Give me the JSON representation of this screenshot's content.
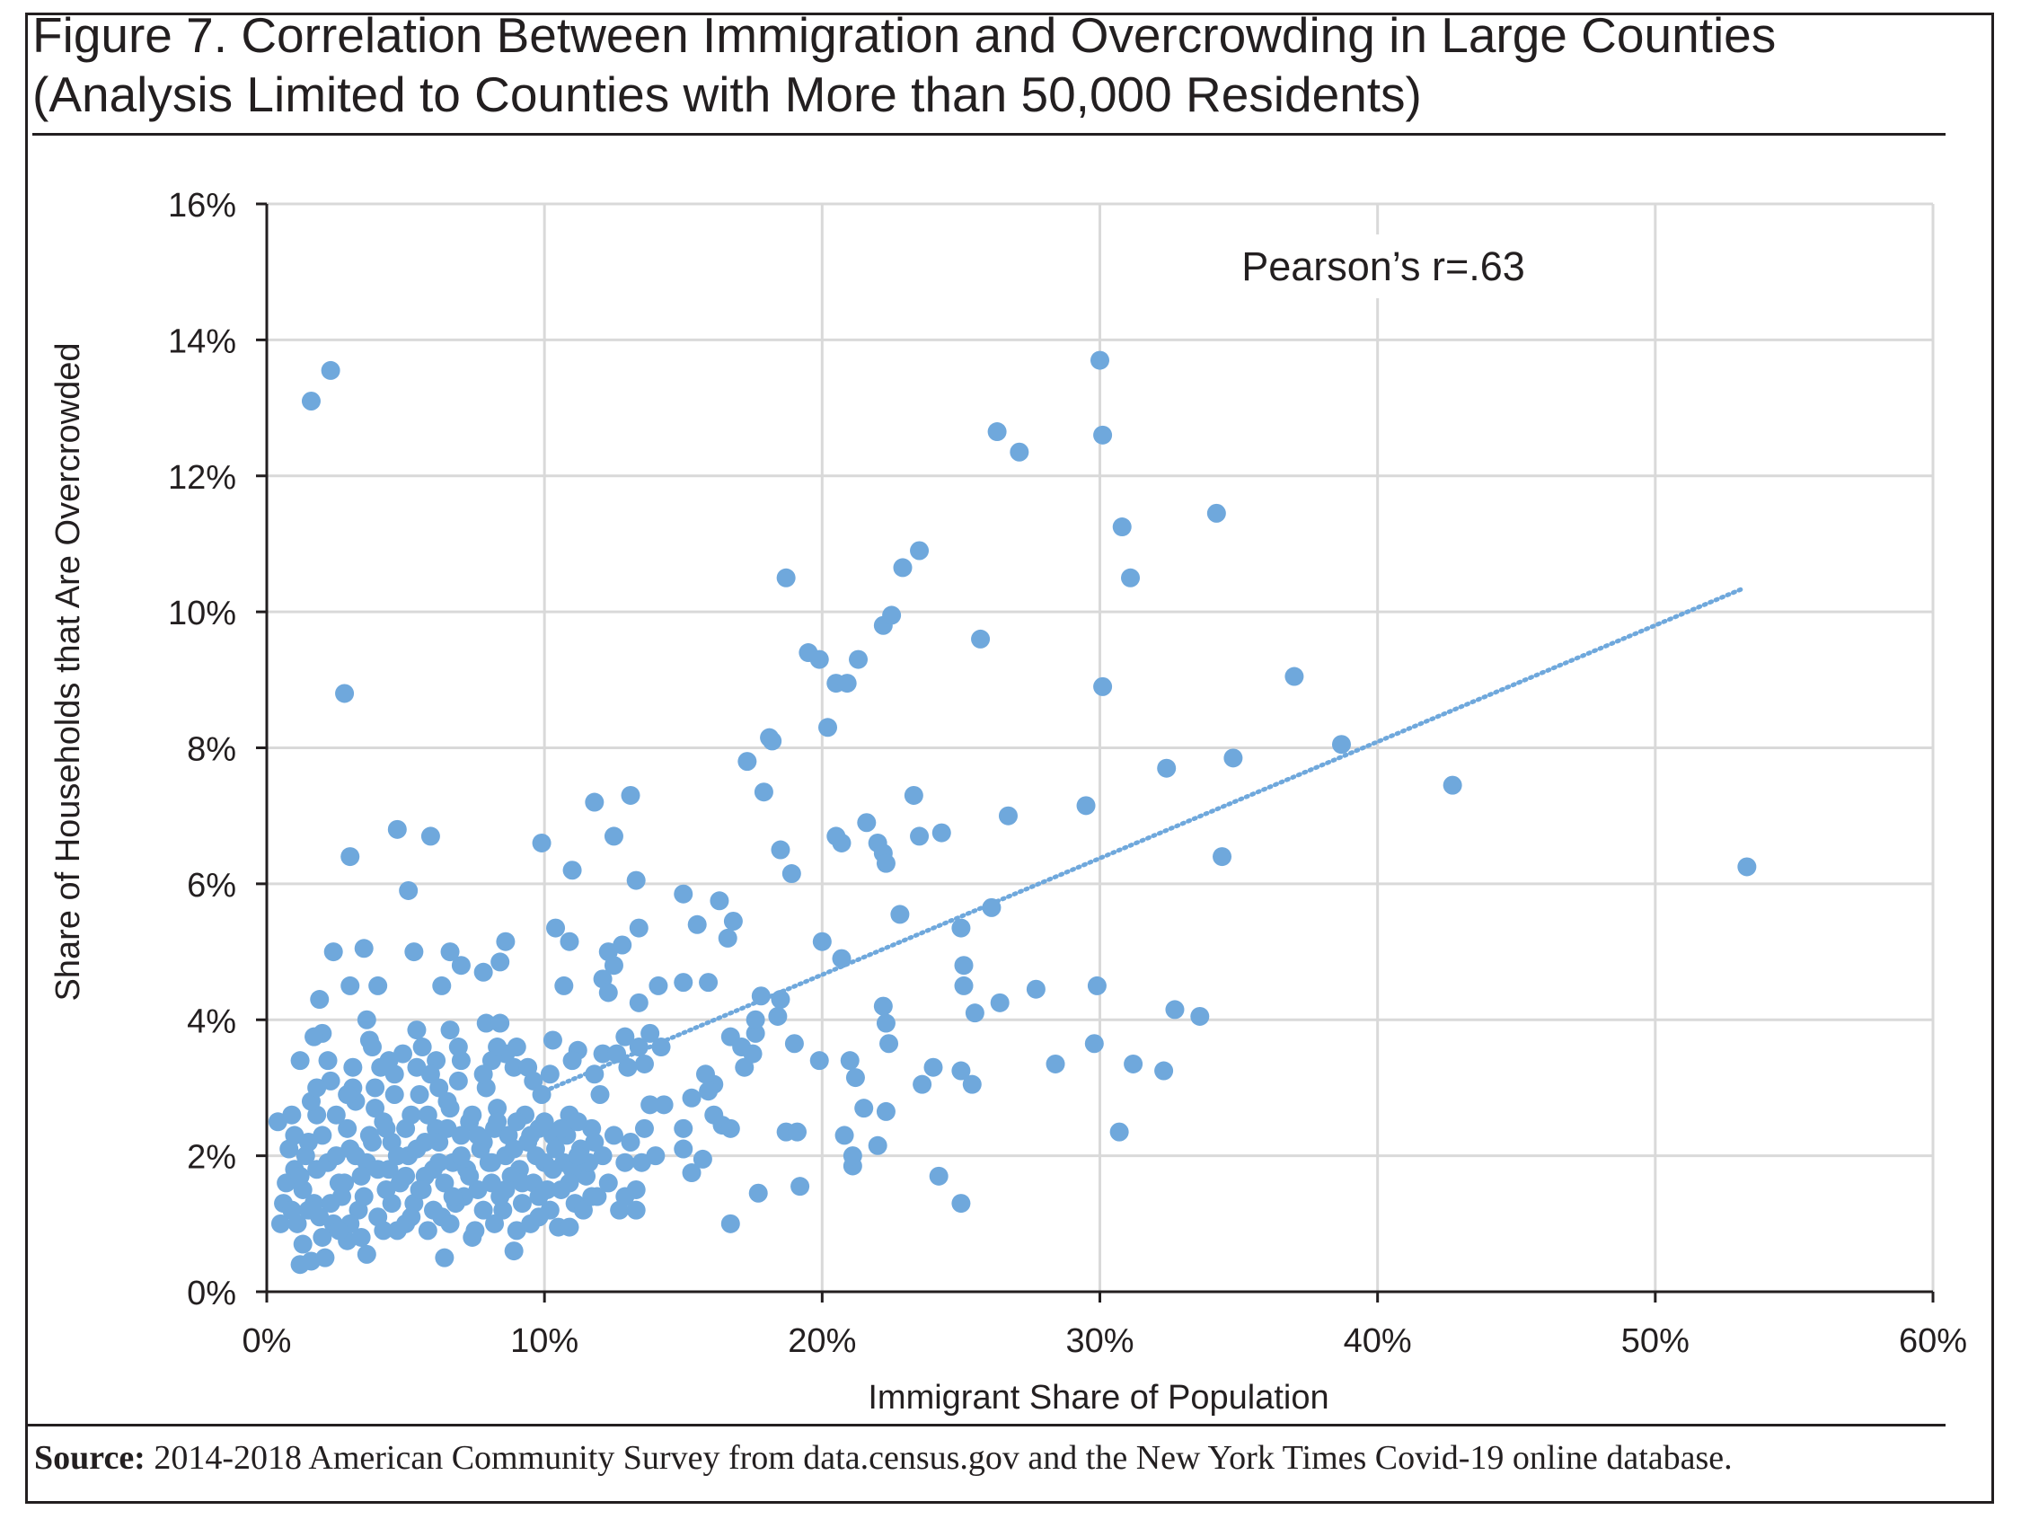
{
  "header": {
    "title_line1": "Figure 7. Correlation Between Immigration and Overcrowding in Large Counties",
    "title_line2": "(Analysis Limited to Counties with More than 50,000 Residents)"
  },
  "footer": {
    "source_label": "Source:",
    "source_text": " 2014-2018 American Community Survey from data.census.gov and the New York Times Covid-19 online database."
  },
  "chart_data": {
    "type": "scatter",
    "xlabel": "Immigrant Share of Population",
    "ylabel": "Share of Households that Are Overcrowded",
    "xlim": [
      0,
      60
    ],
    "ylim": [
      0,
      16
    ],
    "x_ticks": [
      0,
      10,
      20,
      30,
      40,
      50,
      60
    ],
    "y_ticks": [
      0,
      2,
      4,
      6,
      8,
      10,
      12,
      14,
      16
    ],
    "x_tick_labels": [
      "0%",
      "10%",
      "20%",
      "30%",
      "40%",
      "50%",
      "60%"
    ],
    "y_tick_labels": [
      "0%",
      "2%",
      "4%",
      "6%",
      "8%",
      "10%",
      "12%",
      "14%",
      "16%"
    ],
    "grid": true,
    "annotation": "Pearson’s r=.63",
    "colors": {
      "points": "#6fa8dc",
      "trendline": "#6fa8dc",
      "grid": "#d9d9d9",
      "axis": "#231f20"
    },
    "trendline": {
      "style": "dotted",
      "x": [
        10.0,
        53.2
      ],
      "y": [
        2.95,
        10.35
      ]
    },
    "points": [
      [
        2.3,
        13.55
      ],
      [
        1.6,
        13.1
      ],
      [
        2.8,
        8.8
      ],
      [
        3.0,
        6.4
      ],
      [
        4.7,
        6.8
      ],
      [
        5.9,
        6.7
      ],
      [
        5.1,
        5.9
      ],
      [
        2.4,
        5.0
      ],
      [
        3.5,
        5.05
      ],
      [
        5.3,
        5.0
      ],
      [
        6.6,
        5.0
      ],
      [
        9.9,
        6.6
      ],
      [
        11.0,
        6.2
      ],
      [
        12.5,
        6.7
      ],
      [
        13.1,
        7.3
      ],
      [
        13.3,
        6.05
      ],
      [
        10.4,
        5.35
      ],
      [
        10.9,
        5.15
      ],
      [
        8.6,
        5.15
      ],
      [
        7.0,
        4.8
      ],
      [
        7.8,
        4.7
      ],
      [
        8.4,
        4.85
      ],
      [
        6.3,
        4.5
      ],
      [
        4.0,
        4.5
      ],
      [
        3.0,
        4.5
      ],
      [
        1.9,
        4.3
      ],
      [
        12.3,
        5.0
      ],
      [
        13.4,
        5.35
      ],
      [
        12.8,
        5.1
      ],
      [
        12.5,
        4.8
      ],
      [
        12.1,
        4.6
      ],
      [
        12.3,
        4.4
      ],
      [
        13.4,
        4.25
      ],
      [
        14.1,
        4.5
      ],
      [
        15.0,
        4.55
      ],
      [
        15.9,
        4.55
      ],
      [
        15.0,
        5.85
      ],
      [
        15.5,
        5.4
      ],
      [
        16.3,
        5.75
      ],
      [
        16.8,
        5.45
      ],
      [
        16.6,
        5.2
      ],
      [
        11.8,
        7.2
      ],
      [
        10.7,
        4.5
      ],
      [
        3.6,
        4.0
      ],
      [
        6.6,
        3.85
      ],
      [
        5.4,
        3.85
      ],
      [
        7.9,
        3.95
      ],
      [
        8.4,
        3.95
      ],
      [
        2.0,
        3.8
      ],
      [
        1.7,
        3.75
      ],
      [
        3.7,
        3.7
      ],
      [
        1.2,
        3.4
      ],
      [
        2.2,
        3.4
      ],
      [
        4.4,
        3.4
      ],
      [
        6.1,
        3.4
      ],
      [
        8.1,
        3.4
      ],
      [
        9.0,
        3.6
      ],
      [
        10.3,
        3.7
      ],
      [
        11.2,
        3.55
      ],
      [
        12.1,
        3.5
      ],
      [
        12.9,
        3.75
      ],
      [
        13.4,
        3.6
      ],
      [
        13.8,
        3.8
      ],
      [
        14.2,
        3.6
      ],
      [
        13.6,
        3.35
      ],
      [
        15.8,
        3.2
      ],
      [
        16.1,
        3.05
      ],
      [
        16.7,
        3.75
      ],
      [
        17.1,
        3.6
      ],
      [
        17.5,
        3.5
      ],
      [
        17.6,
        3.8
      ],
      [
        17.8,
        4.35
      ],
      [
        18.5,
        4.3
      ],
      [
        18.4,
        4.05
      ],
      [
        17.6,
        4.0
      ],
      [
        17.2,
        3.3
      ],
      [
        19.0,
        3.65
      ],
      [
        19.9,
        3.4
      ],
      [
        17.3,
        7.8
      ],
      [
        17.9,
        7.35
      ],
      [
        18.1,
        8.15
      ],
      [
        18.2,
        8.1
      ],
      [
        18.5,
        6.5
      ],
      [
        18.9,
        6.15
      ],
      [
        18.7,
        10.5
      ],
      [
        19.5,
        9.4
      ],
      [
        19.9,
        9.3
      ],
      [
        20.5,
        8.95
      ],
      [
        20.9,
        8.95
      ],
      [
        21.3,
        9.3
      ],
      [
        20.2,
        8.3
      ],
      [
        20.5,
        6.7
      ],
      [
        20.7,
        6.6
      ],
      [
        21.6,
        6.9
      ],
      [
        22.0,
        6.6
      ],
      [
        22.2,
        6.45
      ],
      [
        22.3,
        6.3
      ],
      [
        22.8,
        5.55
      ],
      [
        22.2,
        9.8
      ],
      [
        22.5,
        9.95
      ],
      [
        22.9,
        10.65
      ],
      [
        23.5,
        10.9
      ],
      [
        23.3,
        7.3
      ],
      [
        23.5,
        6.7
      ],
      [
        24.3,
        6.75
      ],
      [
        20.0,
        5.15
      ],
      [
        20.7,
        4.9
      ],
      [
        22.2,
        4.2
      ],
      [
        22.3,
        3.95
      ],
      [
        22.4,
        3.65
      ],
      [
        21.0,
        3.4
      ],
      [
        21.2,
        3.15
      ],
      [
        24.0,
        3.3
      ],
      [
        23.6,
        3.05
      ],
      [
        25.0,
        5.35
      ],
      [
        25.1,
        4.8
      ],
      [
        25.1,
        4.5
      ],
      [
        25.5,
        4.1
      ],
      [
        26.1,
        5.65
      ],
      [
        25.7,
        9.6
      ],
      [
        26.3,
        12.65
      ],
      [
        27.1,
        12.35
      ],
      [
        26.7,
        7.0
      ],
      [
        26.4,
        4.25
      ],
      [
        27.7,
        4.45
      ],
      [
        25.0,
        3.25
      ],
      [
        25.4,
        3.05
      ],
      [
        28.4,
        3.35
      ],
      [
        29.5,
        7.15
      ],
      [
        30.0,
        13.7
      ],
      [
        30.1,
        12.6
      ],
      [
        30.8,
        11.25
      ],
      [
        31.1,
        10.5
      ],
      [
        30.1,
        8.9
      ],
      [
        29.9,
        4.5
      ],
      [
        29.8,
        3.65
      ],
      [
        31.2,
        3.35
      ],
      [
        30.7,
        2.35
      ],
      [
        32.3,
        3.25
      ],
      [
        32.4,
        7.7
      ],
      [
        32.7,
        4.15
      ],
      [
        33.6,
        4.05
      ],
      [
        34.2,
        11.45
      ],
      [
        34.4,
        6.4
      ],
      [
        34.8,
        7.85
      ],
      [
        37.0,
        9.05
      ],
      [
        38.7,
        8.05
      ],
      [
        42.7,
        7.45
      ],
      [
        53.3,
        6.25
      ],
      [
        16.4,
        2.45
      ],
      [
        16.7,
        2.4
      ],
      [
        15.3,
        2.85
      ],
      [
        15.0,
        2.4
      ],
      [
        15.0,
        2.1
      ],
      [
        15.3,
        1.75
      ],
      [
        15.7,
        1.95
      ],
      [
        16.1,
        2.6
      ],
      [
        15.9,
        2.95
      ],
      [
        13.8,
        2.75
      ],
      [
        14.3,
        2.75
      ],
      [
        17.7,
        1.45
      ],
      [
        18.7,
        2.35
      ],
      [
        19.1,
        2.35
      ],
      [
        19.2,
        1.55
      ],
      [
        16.7,
        1.0
      ],
      [
        20.8,
        2.3
      ],
      [
        21.1,
        1.85
      ],
      [
        21.1,
        2.0
      ],
      [
        21.5,
        2.7
      ],
      [
        22.0,
        2.15
      ],
      [
        22.3,
        2.65
      ],
      [
        24.2,
        1.7
      ],
      [
        25.0,
        1.3
      ],
      [
        0.4,
        2.5
      ],
      [
        0.5,
        1.0
      ],
      [
        0.6,
        1.3
      ],
      [
        0.8,
        2.1
      ],
      [
        1.0,
        1.8
      ],
      [
        1.2,
        0.4
      ],
      [
        1.6,
        0.45
      ],
      [
        2.1,
        0.5
      ],
      [
        2.9,
        0.75
      ],
      [
        3.6,
        0.55
      ],
      [
        6.4,
        0.5
      ],
      [
        8.9,
        0.6
      ],
      [
        0.9,
        1.2
      ],
      [
        1.3,
        1.5
      ],
      [
        1.5,
        2.2
      ],
      [
        1.8,
        2.6
      ],
      [
        2.0,
        0.8
      ],
      [
        2.4,
        1.0
      ],
      [
        2.6,
        1.6
      ],
      [
        2.9,
        2.4
      ],
      [
        3.1,
        3.0
      ],
      [
        3.3,
        1.2
      ],
      [
        3.6,
        1.9
      ],
      [
        3.9,
        2.7
      ],
      [
        4.1,
        3.3
      ],
      [
        4.3,
        1.5
      ],
      [
        4.5,
        2.2
      ],
      [
        4.7,
        0.9
      ],
      [
        4.9,
        3.5
      ],
      [
        5.1,
        2.0
      ],
      [
        5.3,
        1.3
      ],
      [
        5.5,
        2.9
      ],
      [
        5.7,
        1.7
      ],
      [
        5.9,
        3.2
      ],
      [
        6.1,
        2.4
      ],
      [
        6.3,
        1.1
      ],
      [
        6.5,
        2.8
      ],
      [
        6.7,
        1.9
      ],
      [
        6.9,
        3.1
      ],
      [
        7.1,
        1.4
      ],
      [
        7.3,
        2.5
      ],
      [
        7.5,
        0.9
      ],
      [
        7.7,
        2.1
      ],
      [
        7.9,
        3.0
      ],
      [
        8.1,
        1.6
      ],
      [
        8.3,
        2.7
      ],
      [
        8.5,
        1.2
      ],
      [
        8.7,
        2.3
      ],
      [
        8.9,
        3.3
      ],
      [
        9.1,
        1.8
      ],
      [
        9.3,
        2.6
      ],
      [
        9.5,
        1.0
      ],
      [
        9.7,
        2.0
      ],
      [
        9.9,
        2.9
      ],
      [
        10.1,
        1.5
      ],
      [
        10.3,
        2.3
      ],
      [
        10.5,
        0.95
      ],
      [
        10.7,
        1.9
      ],
      [
        10.9,
        2.6
      ],
      [
        11.1,
        1.3
      ],
      [
        11.3,
        2.1
      ],
      [
        11.5,
        1.7
      ],
      [
        11.7,
        2.4
      ],
      [
        11.9,
        1.4
      ],
      [
        12.1,
        2.0
      ],
      [
        12.3,
        1.6
      ],
      [
        12.5,
        2.3
      ],
      [
        12.7,
        1.2
      ],
      [
        12.9,
        1.9
      ],
      [
        13.1,
        2.2
      ],
      [
        13.3,
        1.5
      ],
      [
        13.5,
        1.9
      ],
      [
        1.1,
        1.0
      ],
      [
        1.4,
        2.0
      ],
      [
        1.7,
        1.3
      ],
      [
        2.2,
        1.9
      ],
      [
        2.5,
        2.6
      ],
      [
        2.7,
        1.4
      ],
      [
        3.0,
        2.1
      ],
      [
        3.2,
        2.8
      ],
      [
        3.4,
        1.7
      ],
      [
        3.7,
        2.3
      ],
      [
        4.0,
        1.1
      ],
      [
        4.2,
        2.5
      ],
      [
        4.4,
        1.8
      ],
      [
        4.6,
        2.9
      ],
      [
        4.8,
        1.6
      ],
      [
        5.0,
        2.4
      ],
      [
        5.2,
        1.1
      ],
      [
        5.4,
        2.1
      ],
      [
        5.6,
        1.5
      ],
      [
        5.8,
        2.6
      ],
      [
        6.0,
        1.8
      ],
      [
        6.2,
        2.2
      ],
      [
        6.4,
        1.6
      ],
      [
        6.6,
        2.7
      ],
      [
        6.8,
        1.3
      ],
      [
        7.0,
        2.3
      ],
      [
        7.2,
        1.8
      ],
      [
        7.4,
        2.6
      ],
      [
        7.6,
        1.5
      ],
      [
        7.8,
        2.2
      ],
      [
        8.0,
        1.9
      ],
      [
        8.2,
        2.4
      ],
      [
        8.4,
        1.4
      ],
      [
        8.6,
        2.0
      ],
      [
        8.8,
        1.7
      ],
      [
        9.0,
        2.5
      ],
      [
        9.2,
        1.3
      ],
      [
        9.4,
        2.2
      ],
      [
        9.6,
        1.6
      ],
      [
        9.8,
        2.4
      ],
      [
        10.0,
        1.9
      ],
      [
        10.2,
        1.2
      ],
      [
        10.4,
        2.1
      ],
      [
        10.6,
        1.5
      ],
      [
        10.8,
        2.3
      ],
      [
        11.0,
        1.8
      ],
      [
        11.2,
        2.5
      ],
      [
        11.4,
        1.2
      ],
      [
        11.6,
        1.9
      ],
      [
        11.8,
        2.2
      ],
      [
        0.7,
        1.6
      ],
      [
        1.0,
        2.3
      ],
      [
        1.2,
        1.7
      ],
      [
        1.5,
        1.2
      ],
      [
        1.8,
        1.8
      ],
      [
        2.0,
        2.3
      ],
      [
        2.3,
        1.3
      ],
      [
        2.5,
        2.0
      ],
      [
        2.8,
        1.6
      ],
      [
        3.0,
        1.0
      ],
      [
        3.2,
        2.0
      ],
      [
        3.5,
        1.4
      ],
      [
        3.8,
        2.2
      ],
      [
        4.0,
        1.8
      ],
      [
        4.3,
        2.4
      ],
      [
        4.5,
        1.3
      ],
      [
        4.7,
        2.0
      ],
      [
        5.0,
        1.7
      ],
      [
        5.2,
        2.6
      ],
      [
        5.5,
        1.5
      ],
      [
        5.7,
        2.2
      ],
      [
        6.0,
        1.2
      ],
      [
        6.2,
        1.9
      ],
      [
        6.5,
        2.4
      ],
      [
        6.7,
        1.4
      ],
      [
        7.0,
        2.0
      ],
      [
        7.3,
        1.7
      ],
      [
        7.6,
        2.3
      ],
      [
        7.8,
        1.2
      ],
      [
        8.1,
        1.9
      ],
      [
        8.3,
        2.5
      ],
      [
        8.6,
        1.5
      ],
      [
        8.9,
        2.1
      ],
      [
        9.2,
        1.6
      ],
      [
        9.5,
        2.3
      ],
      [
        9.8,
        1.4
      ],
      [
        10.0,
        2.5
      ],
      [
        10.3,
        1.8
      ],
      [
        10.6,
        2.4
      ],
      [
        10.9,
        1.6
      ],
      [
        11.2,
        2.0
      ],
      [
        1.3,
        0.7
      ],
      [
        1.9,
        1.1
      ],
      [
        2.6,
        0.9
      ],
      [
        3.4,
        0.8
      ],
      [
        4.2,
        0.9
      ],
      [
        5.0,
        1.0
      ],
      [
        5.8,
        0.9
      ],
      [
        6.6,
        1.0
      ],
      [
        7.4,
        0.8
      ],
      [
        8.2,
        1.0
      ],
      [
        9.0,
        0.9
      ],
      [
        9.8,
        1.1
      ],
      [
        1.6,
        2.8
      ],
      [
        2.3,
        3.1
      ],
      [
        3.1,
        3.3
      ],
      [
        3.9,
        3.0
      ],
      [
        4.6,
        3.2
      ],
      [
        5.4,
        3.3
      ],
      [
        6.2,
        3.0
      ],
      [
        7.0,
        3.4
      ],
      [
        7.8,
        3.2
      ],
      [
        8.6,
        3.5
      ],
      [
        9.4,
        3.3
      ],
      [
        10.2,
        3.2
      ],
      [
        11.0,
        3.4
      ],
      [
        11.8,
        3.2
      ],
      [
        12.6,
        3.5
      ],
      [
        0.9,
        2.6
      ],
      [
        1.8,
        3.0
      ],
      [
        2.9,
        2.9
      ],
      [
        3.8,
        3.6
      ],
      [
        5.6,
        3.6
      ],
      [
        6.9,
        3.6
      ],
      [
        8.3,
        3.6
      ],
      [
        9.6,
        3.1
      ],
      [
        12.0,
        2.9
      ],
      [
        13.0,
        3.3
      ],
      [
        13.6,
        2.4
      ],
      [
        14.0,
        2.0
      ],
      [
        12.9,
        1.4
      ],
      [
        13.3,
        1.2
      ],
      [
        11.7,
        1.4
      ],
      [
        10.9,
        0.95
      ]
    ]
  }
}
